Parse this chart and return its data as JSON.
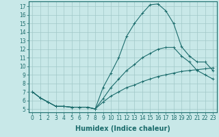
{
  "title": "",
  "xlabel": "Humidex (Indice chaleur)",
  "ylabel": "",
  "bg_color": "#c8e8e8",
  "line_color": "#1a6b6b",
  "xlim": [
    -0.5,
    23.5
  ],
  "ylim": [
    4.6,
    17.6
  ],
  "xticks": [
    0,
    1,
    2,
    3,
    4,
    5,
    6,
    7,
    8,
    9,
    10,
    11,
    12,
    13,
    14,
    15,
    16,
    17,
    18,
    19,
    20,
    21,
    22,
    23
  ],
  "yticks": [
    5,
    6,
    7,
    8,
    9,
    10,
    11,
    12,
    13,
    14,
    15,
    16,
    17
  ],
  "line1_x": [
    0,
    1,
    2,
    3,
    4,
    5,
    6,
    7,
    8,
    9,
    10,
    11,
    12,
    13,
    14,
    15,
    16,
    17,
    18,
    19,
    20,
    21,
    22,
    23
  ],
  "line1_y": [
    7.0,
    6.3,
    5.8,
    5.3,
    5.3,
    5.2,
    5.2,
    5.2,
    5.0,
    7.5,
    9.2,
    11.0,
    13.5,
    15.0,
    16.2,
    17.2,
    17.3,
    16.5,
    15.0,
    12.3,
    11.2,
    10.5,
    10.5,
    9.5
  ],
  "line2_x": [
    0,
    1,
    2,
    3,
    4,
    5,
    6,
    7,
    8,
    9,
    10,
    11,
    12,
    13,
    14,
    15,
    16,
    17,
    18,
    19,
    20,
    21,
    22,
    23
  ],
  "line2_y": [
    7.0,
    6.3,
    5.8,
    5.3,
    5.3,
    5.2,
    5.2,
    5.2,
    5.0,
    6.2,
    7.5,
    8.5,
    9.5,
    10.2,
    11.0,
    11.5,
    12.0,
    12.2,
    12.2,
    11.2,
    10.5,
    9.5,
    9.0,
    8.5
  ],
  "line3_x": [
    0,
    1,
    2,
    3,
    4,
    5,
    6,
    7,
    8,
    9,
    10,
    11,
    12,
    13,
    14,
    15,
    16,
    17,
    18,
    19,
    20,
    21,
    22,
    23
  ],
  "line3_y": [
    7.0,
    6.3,
    5.8,
    5.3,
    5.3,
    5.2,
    5.2,
    5.2,
    5.0,
    5.8,
    6.5,
    7.0,
    7.5,
    7.8,
    8.2,
    8.5,
    8.8,
    9.0,
    9.2,
    9.4,
    9.5,
    9.6,
    9.7,
    9.8
  ],
  "grid_color": "#a0c8c8",
  "tick_fontsize": 5.5,
  "label_fontsize": 7
}
